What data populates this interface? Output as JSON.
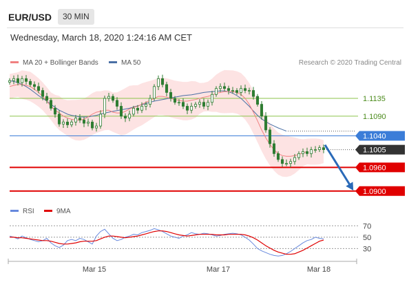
{
  "header": {
    "symbol": "EUR/USD",
    "timeframe": "30 MIN",
    "datetime": "Wednesday, March 18, 2020 1:24:16 AM CET",
    "credit": "Research © 2020 Trading Central"
  },
  "legend": {
    "ma20_label": "MA 20 + Bollinger Bands",
    "ma50_label": "MA 50",
    "rsi_label": "RSI",
    "rsi_ma_label": "9MA"
  },
  "colors": {
    "ma20": "#f08080",
    "bollinger_fill": "#fde0e0",
    "ma50": "#4a6fa5",
    "candles": "#2e7d32",
    "resistance": "#8bc34a",
    "pivot": "#3b7dd8",
    "support": "#e00000",
    "last_price": "#333333",
    "rsi": "#6688dd",
    "rsi_ma": "#e00000"
  },
  "chart_data": [
    {
      "type": "line",
      "title": "EUR/USD 30 MIN",
      "x_ticks": [
        "Mar 15",
        "Mar 17",
        "Mar 18"
      ],
      "ylim": [
        1.087,
        1.121
      ],
      "last_price": 1.1005,
      "levels": [
        {
          "label": "1.1135",
          "value": 1.1135,
          "kind": "resistance"
        },
        {
          "label": "1.1090",
          "value": 1.109,
          "kind": "resistance"
        },
        {
          "label": "1.1040",
          "value": 1.104,
          "kind": "pivot"
        },
        {
          "label": "1.1005",
          "value": 1.1005,
          "kind": "last"
        },
        {
          "label": "1.0960",
          "value": 1.096,
          "kind": "support"
        },
        {
          "label": "1.0900",
          "value": 1.09,
          "kind": "support"
        }
      ],
      "projection": {
        "from": 1.101,
        "to": 1.09
      },
      "series": [
        {
          "name": "Price",
          "values": [
            1.118,
            1.1185,
            1.1175,
            1.1185,
            1.1178,
            1.117,
            1.1165,
            1.1155,
            1.114,
            1.113,
            1.111,
            1.1095,
            1.107,
            1.1075,
            1.1068,
            1.1075,
            1.1085,
            1.108,
            1.1072,
            1.1075,
            1.106,
            1.1065,
            1.1095,
            1.1135,
            1.114,
            1.113,
            1.1115,
            1.109,
            1.1085,
            1.1095,
            1.111,
            1.1105,
            1.1115,
            1.112,
            1.1135,
            1.1165,
            1.1185,
            1.117,
            1.115,
            1.1135,
            1.1125,
            1.1125,
            1.1115,
            1.1105,
            1.1115,
            1.112,
            1.1125,
            1.1115,
            1.1125,
            1.1145,
            1.116,
            1.1165,
            1.116,
            1.1155,
            1.1155,
            1.115,
            1.116,
            1.1155,
            1.1155,
            1.114,
            1.112,
            1.109,
            1.1055,
            1.102,
            1.0995,
            1.098,
            1.097,
            1.097,
            1.0975,
            1.0985,
            1.0995,
            1.1,
            1.0995,
            1.1005,
            1.1005,
            1.101,
            1.1005
          ]
        },
        {
          "name": "MA 20",
          "values": [
            1.1165,
            1.1168,
            1.117,
            1.117,
            1.1168,
            1.1165,
            1.1158,
            1.115,
            1.114,
            1.1128,
            1.1115,
            1.1105,
            1.1098,
            1.109,
            1.1085,
            1.1082,
            1.108,
            1.108,
            1.1082,
            1.1088,
            1.1095,
            1.11,
            1.1102,
            1.1105,
            1.1105,
            1.11,
            1.1098,
            1.1098,
            1.1102,
            1.1108,
            1.1112,
            1.1115,
            1.112,
            1.1125,
            1.113,
            1.1135,
            1.114,
            1.114,
            1.1138,
            1.1135,
            1.1132,
            1.113,
            1.1128,
            1.1128,
            1.113,
            1.1132,
            1.1135,
            1.1138,
            1.114,
            1.1143,
            1.1148,
            1.115,
            1.1152,
            1.1152,
            1.1152,
            1.115,
            1.1145,
            1.1135,
            1.112,
            1.11,
            1.1078,
            1.1055,
            1.1035,
            1.1018,
            1.1005,
            1.0995,
            1.099,
            1.0988,
            1.0988,
            1.099,
            1.0993,
            1.0997,
            1.1
          ]
        },
        {
          "name": "MA 50",
          "values": [
            1.118,
            1.1178,
            1.1175,
            1.117,
            1.1165,
            1.1158,
            1.115,
            1.1142,
            1.1135,
            1.1128,
            1.112,
            1.1112,
            1.1105,
            1.11,
            1.1095,
            1.1092,
            1.109,
            1.1088,
            1.1088,
            1.1088,
            1.109,
            1.1092,
            1.1095,
            1.1098,
            1.11,
            1.1102,
            1.1104,
            1.1106,
            1.1108,
            1.111,
            1.1113,
            1.1116,
            1.1119,
            1.1122,
            1.1125,
            1.1128,
            1.113,
            1.1132,
            1.1134,
            1.1136,
            1.1138,
            1.114,
            1.1142,
            1.1143,
            1.1144,
            1.1146,
            1.1148,
            1.115,
            1.1151,
            1.1152,
            1.1153,
            1.1154,
            1.1154,
            1.1152,
            1.1148,
            1.1142,
            1.1135,
            1.1125,
            1.1115,
            1.1103,
            1.1092,
            1.1083,
            1.1076,
            1.107,
            1.1065,
            1.106,
            1.1056,
            1.1052
          ]
        }
      ]
    },
    {
      "type": "line",
      "y_ticks": [
        "70",
        "50",
        "30"
      ],
      "ylim": [
        10,
        80
      ],
      "series": [
        {
          "name": "RSI",
          "values": [
            52,
            50,
            47,
            52,
            49,
            46,
            44,
            42,
            44,
            48,
            40,
            35,
            32,
            36,
            44,
            46,
            44,
            48,
            46,
            42,
            38,
            52,
            60,
            64,
            56,
            48,
            44,
            46,
            50,
            52,
            55,
            54,
            58,
            60,
            62,
            65,
            63,
            60,
            56,
            52,
            50,
            48,
            52,
            54,
            58,
            56,
            55,
            57,
            56,
            54,
            52,
            53,
            55,
            56,
            57,
            56,
            54,
            50,
            45,
            38,
            30,
            26,
            23,
            20,
            18,
            17,
            18,
            21,
            25,
            30,
            35,
            40,
            44,
            46,
            50,
            48,
            47
          ]
        },
        {
          "name": "9MA",
          "values": [
            50,
            50,
            49,
            49,
            48,
            47,
            46,
            45,
            44,
            44,
            43,
            41,
            39,
            38,
            38,
            39,
            40,
            42,
            43,
            43,
            43,
            44,
            47,
            50,
            52,
            52,
            51,
            50,
            49,
            50,
            51,
            52,
            54,
            56,
            58,
            60,
            61,
            61,
            60,
            58,
            56,
            54,
            53,
            52,
            53,
            54,
            55,
            55,
            55,
            55,
            54,
            54,
            54,
            55,
            55,
            55,
            55,
            54,
            52,
            49,
            45,
            40,
            35,
            31,
            27,
            24,
            22,
            20,
            20,
            21,
            24,
            27,
            31,
            35,
            39,
            43,
            45
          ]
        }
      ]
    }
  ]
}
